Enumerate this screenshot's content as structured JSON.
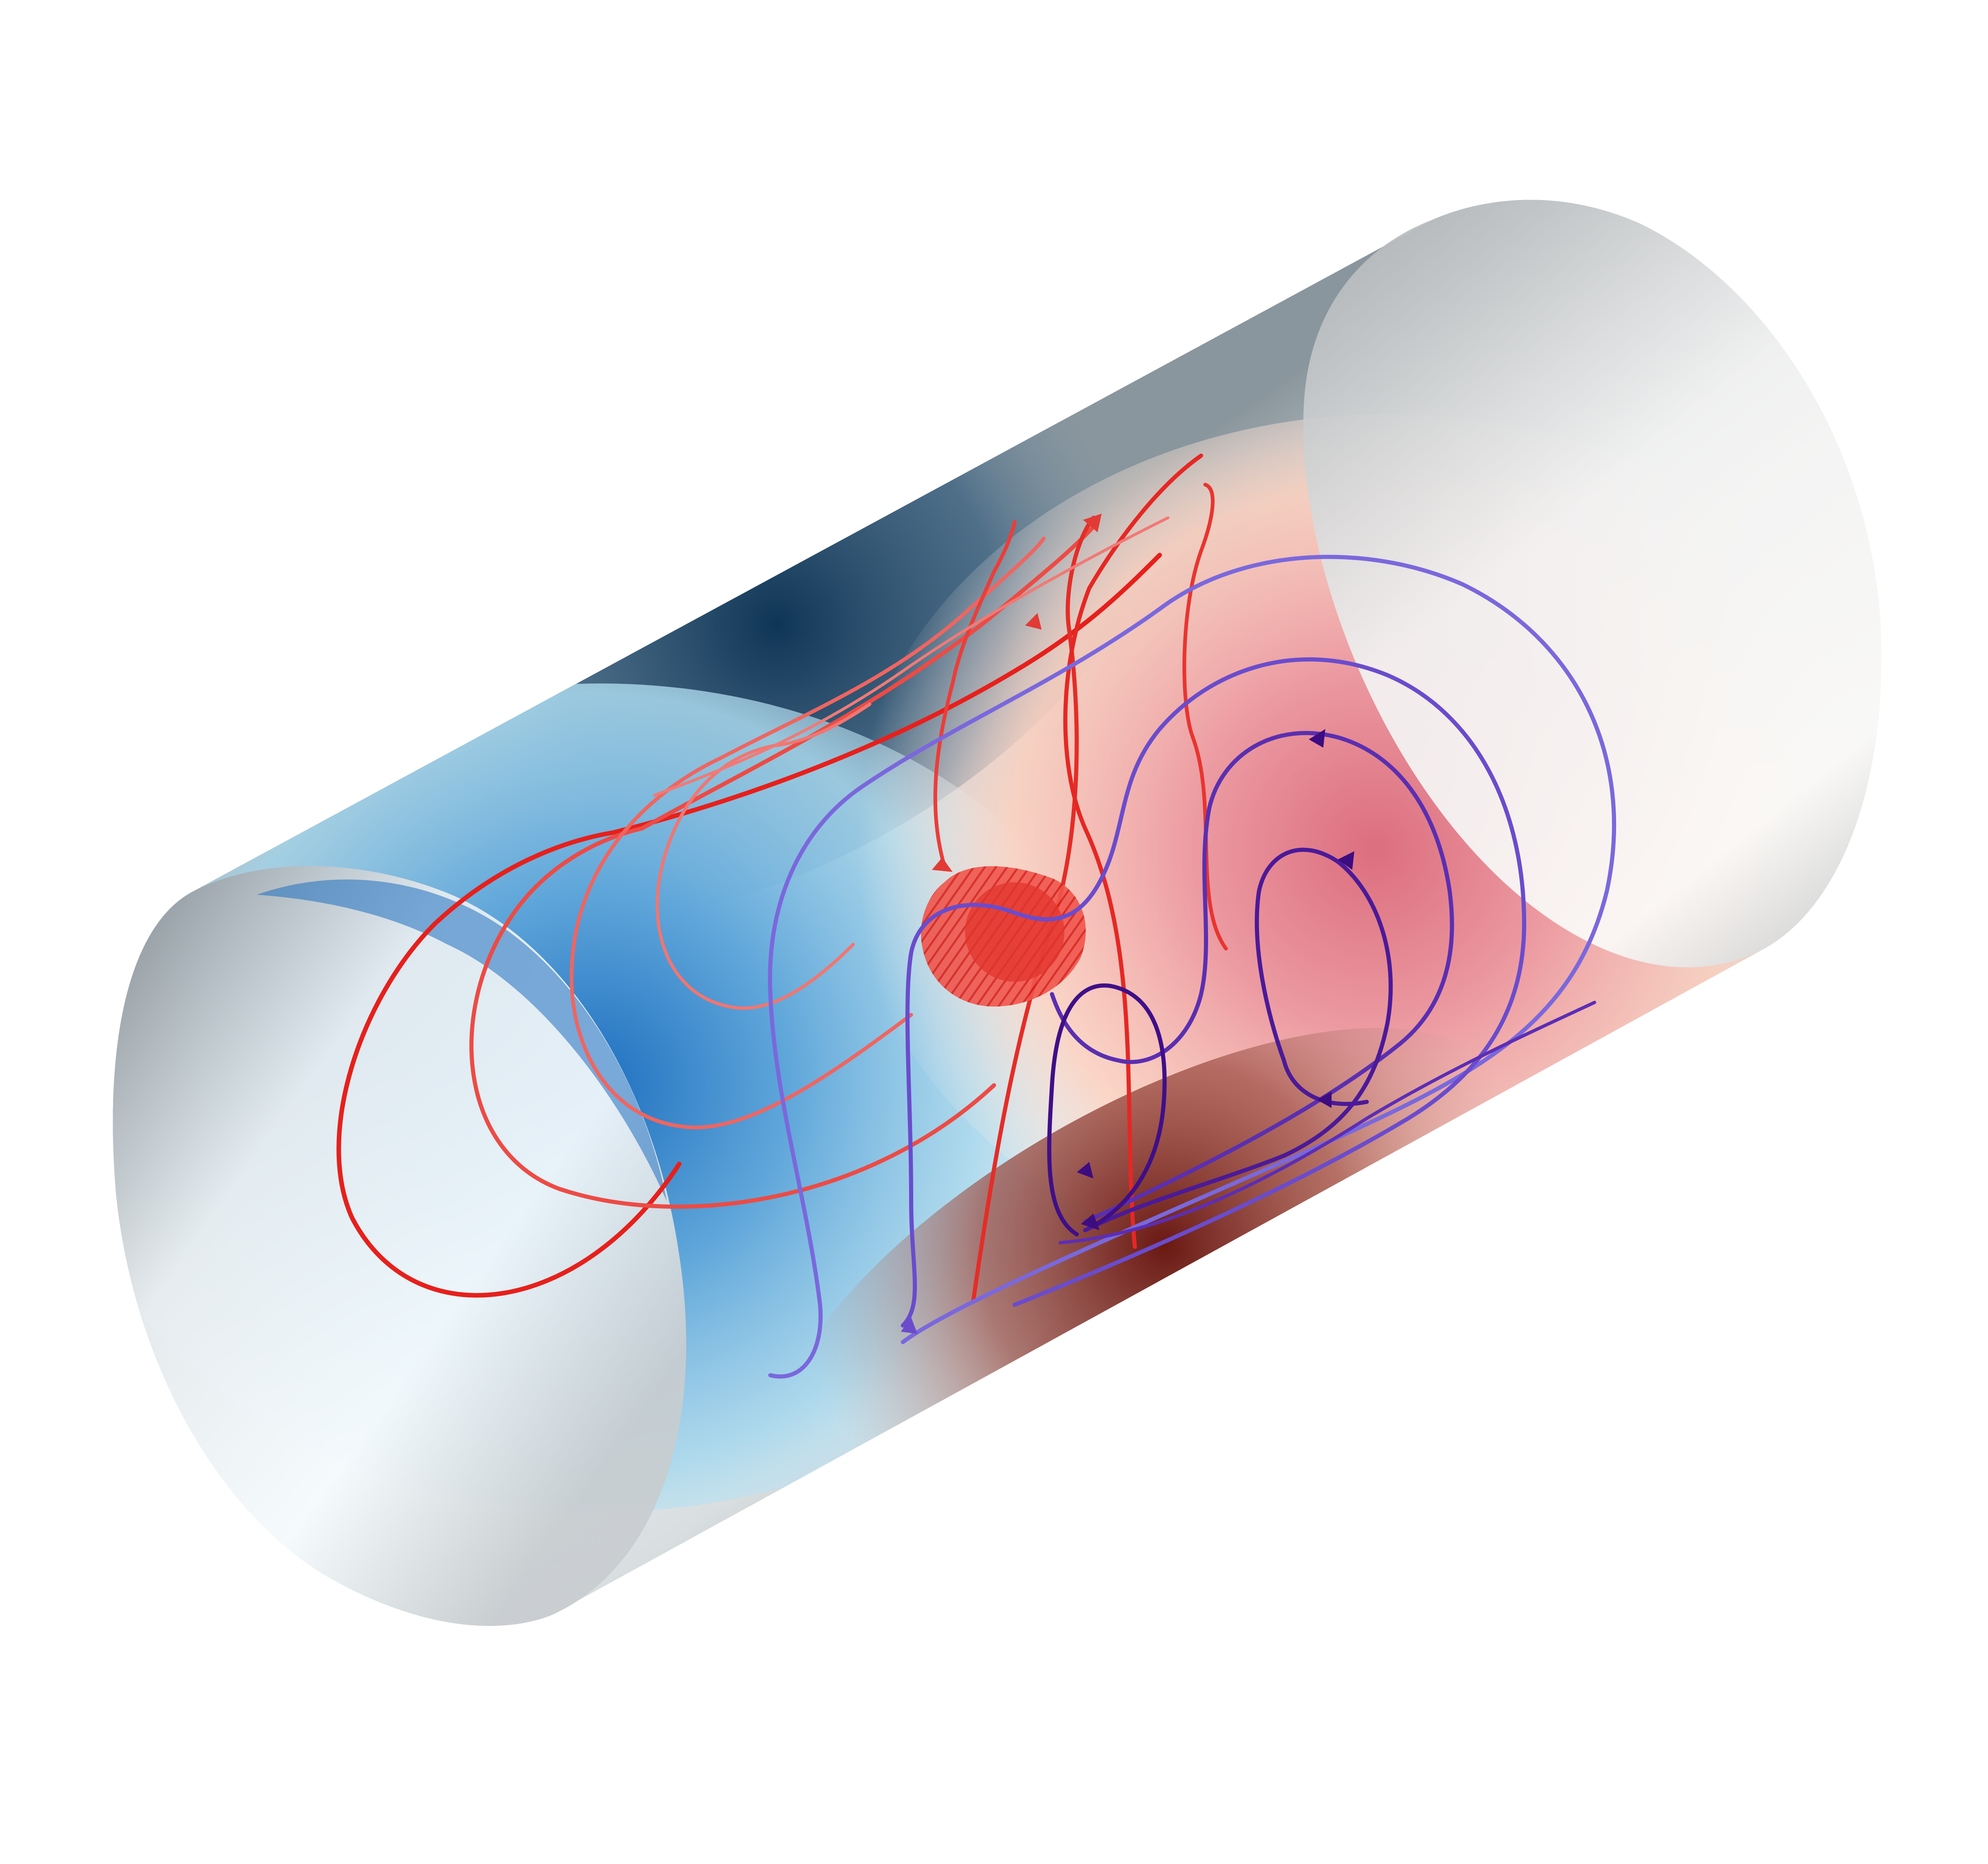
{
  "figure": {
    "subject": "streamlines-in-cylinder",
    "colors": {
      "background": "#ffffff",
      "cylinder_shell": "#d4d7d9",
      "cylinder_cap": "#f0f0f0",
      "left_interior_blue": "#2a78c0",
      "left_interior_light": "#bfe8f6",
      "top_dark_blue": "#133d5e",
      "right_interior_pink": "#e07f8c",
      "right_interior_light": "#ffd8c6",
      "bottom_dark_red": "#6f1a16",
      "stream_red": "#e8241f",
      "stream_salmon": "#ef6460",
      "stream_lilac": "#7f63d9",
      "stream_purple": "#4a1090",
      "source_marker": "#e8322a"
    },
    "streamline_families": [
      "red-loops",
      "purple-loops"
    ],
    "source_marker_icon": "hatched-disc"
  }
}
